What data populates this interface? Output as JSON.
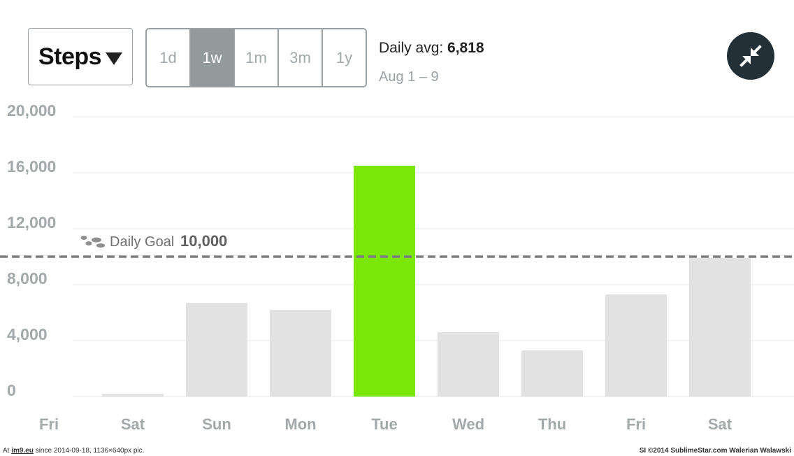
{
  "header": {
    "metric_label": "Steps",
    "range_options": [
      {
        "label": "1d",
        "active": false
      },
      {
        "label": "1w",
        "active": true
      },
      {
        "label": "1m",
        "active": false
      },
      {
        "label": "3m",
        "active": false
      },
      {
        "label": "1y",
        "active": false
      }
    ],
    "daily_avg_label": "Daily avg:",
    "daily_avg_value": "6,818",
    "date_range": "Aug 1 – 9",
    "collapse_icon": "collapse-arrows-icon"
  },
  "colors": {
    "bar": "#e2e2e2",
    "bar_highlight": "#7be708",
    "goal_line": "#7d7d7d",
    "axis_text": "#a3a8ab",
    "button_dark": "#243038"
  },
  "chart_data": {
    "type": "bar",
    "categories": [
      "Fri",
      "Sat",
      "Sun",
      "Mon",
      "Tue",
      "Wed",
      "Thu",
      "Fri",
      "Sat"
    ],
    "values": [
      0,
      200,
      6700,
      6200,
      16500,
      4600,
      3300,
      7300,
      9900
    ],
    "highlight_index": 4,
    "yticks": [
      "20,000",
      "16,000",
      "12,000",
      "8,000",
      "4,000",
      "0"
    ],
    "ylim": [
      0,
      20000
    ],
    "goal": {
      "label": "Daily Goal",
      "value_text": "10,000",
      "value": 10000,
      "icon": "footsteps-icon"
    },
    "grid": true
  },
  "footer": {
    "left_prefix": "At",
    "left_link": "im9.eu",
    "left_suffix": "since 2014-09-18, 1136×640px pic.",
    "right": "SI ©2014 SublimeStar.com Walerian Walawski"
  }
}
